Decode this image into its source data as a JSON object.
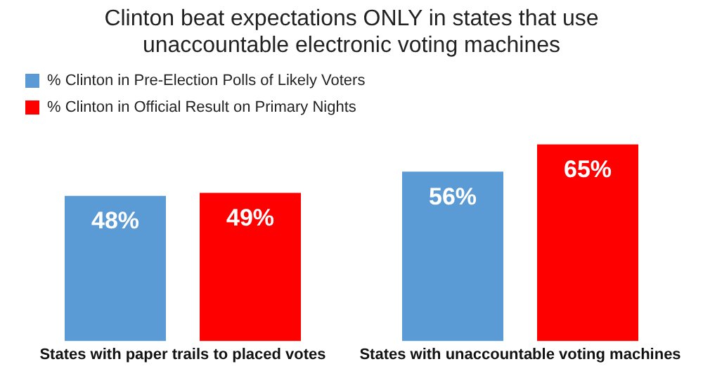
{
  "chart_data": {
    "type": "bar",
    "title": "Clinton beat expectations ONLY in states that use unaccountable electronic voting machines",
    "categories": [
      "States with paper trails to placed votes",
      "States with unaccountable voting machines"
    ],
    "series": [
      {
        "name": "% Clinton in Pre-Election Polls of Likely Voters",
        "color": "#5b9bd5",
        "values": [
          48,
          56
        ],
        "value_labels": [
          "48%",
          "56%"
        ]
      },
      {
        "name": "% Clinton in Official Result on Primary Nights",
        "color": "#ff0000",
        "values": [
          49,
          65
        ],
        "value_labels": [
          "49%",
          "65%"
        ]
      }
    ],
    "legend": "top left",
    "grid": false
  }
}
